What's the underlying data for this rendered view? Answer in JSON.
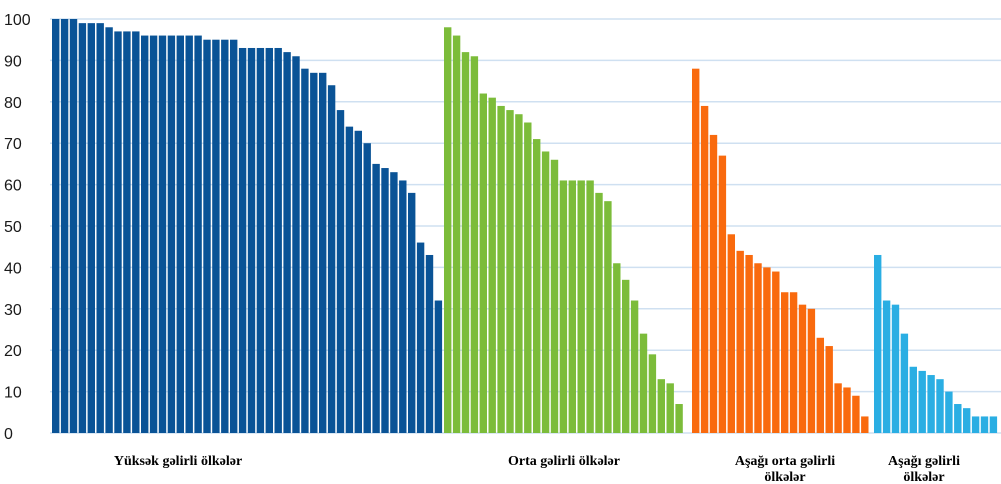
{
  "chart_data": {
    "type": "bar",
    "title": "",
    "xlabel": "",
    "ylabel": "",
    "ylim": [
      0,
      100
    ],
    "yticks": [
      "0",
      "10",
      "20",
      "30",
      "40",
      "50",
      "60",
      "70",
      "80",
      "90",
      "100"
    ],
    "grid": true,
    "legend": "none",
    "series": [
      {
        "group_label": [
          "Yüksək gəlirli ölkələr"
        ],
        "color": "#0a5396",
        "values": [
          100,
          100,
          100,
          99,
          99,
          99,
          98,
          97,
          97,
          97,
          96,
          96,
          96,
          96,
          96,
          96,
          96,
          95,
          95,
          95,
          95,
          93,
          93,
          93,
          93,
          93,
          92,
          91,
          88,
          87,
          87,
          84,
          78,
          74,
          73,
          70,
          65,
          64,
          63,
          61,
          58,
          46,
          43,
          32
        ]
      },
      {
        "group_label": [
          "Orta gəlirli ölkələr"
        ],
        "color": "#7cbc3a",
        "values": [
          98,
          96,
          92,
          91,
          82,
          81,
          79,
          78,
          77,
          75,
          71,
          68,
          66,
          61,
          61,
          61,
          61,
          58,
          56,
          41,
          37,
          32,
          24,
          19,
          13,
          12,
          7
        ]
      },
      {
        "group_label": [
          "Aşağı orta gəlirli",
          "ölkələr"
        ],
        "color": "#f96a0e",
        "values": [
          88,
          79,
          72,
          67,
          48,
          44,
          43,
          41,
          40,
          39,
          34,
          34,
          31,
          30,
          23,
          21,
          12,
          11,
          9,
          4
        ]
      },
      {
        "group_label": [
          "Aşağı gəlirli",
          "ölkələr"
        ],
        "color": "#2aaee3",
        "values": [
          43,
          32,
          31,
          24,
          16,
          15,
          14,
          13,
          10,
          7,
          6,
          4,
          4,
          4
        ]
      }
    ]
  }
}
